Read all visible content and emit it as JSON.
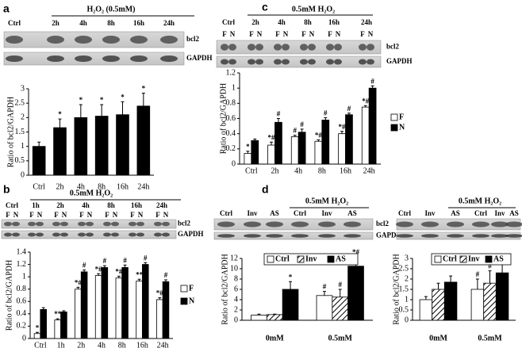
{
  "chart_data": [
    {
      "type": "bar",
      "panel_label": "a",
      "treatment_label": "H₂O₂ (0.5mM)",
      "lane_labels": [
        "Ctrl",
        "2h",
        "4h",
        "8h",
        "16h",
        "24h"
      ],
      "row_labels": [
        "bcl2",
        "GAPDH"
      ],
      "y_label": "Ratio of bcl2/GAPDH",
      "categories": [
        "Ctrl",
        "2h",
        "4h",
        "8h",
        "16h",
        "24h"
      ],
      "values": [
        1.0,
        1.65,
        2.0,
        2.05,
        2.1,
        2.4
      ],
      "errors": [
        0.15,
        0.3,
        0.45,
        0.4,
        0.45,
        0.45
      ],
      "annotations": [
        null,
        "*",
        "*",
        "*",
        "*",
        "*"
      ],
      "color": "#000000",
      "ylim": [
        0,
        3
      ],
      "yticks": [
        0,
        0.5,
        1,
        1.5,
        2,
        2.5,
        3
      ]
    },
    {
      "type": "bar",
      "panel_label": "b",
      "treatment_label": "0.5mM H₂O₂",
      "lane_labels": [
        "Ctrl",
        "1h",
        "2h",
        "4h",
        "8h",
        "16h",
        "24h"
      ],
      "lane_sublabels": [
        "F",
        "N"
      ],
      "row_labels": [
        "bcl2",
        "GAPDH"
      ],
      "y_label": "Ratio of bcl2/GAPDH",
      "categories": [
        "Ctrl",
        "1h",
        "2h",
        "4h",
        "8h",
        "16h",
        "24h"
      ],
      "series": [
        {
          "name": "F",
          "color": "#ffffff",
          "values": [
            0.08,
            0.3,
            0.8,
            1.02,
            0.98,
            0.93,
            0.63
          ],
          "errors": [
            0.02,
            0.02,
            0.03,
            0.03,
            0.03,
            0.03,
            0.03
          ],
          "annotations": [
            "*",
            "**",
            "*#",
            "*#",
            "*#",
            "**",
            "*#"
          ]
        },
        {
          "name": "N",
          "color": "#000000",
          "values": [
            0.47,
            0.43,
            1.08,
            1.15,
            1.15,
            1.2,
            0.92
          ],
          "errors": [
            0.03,
            0.02,
            0.03,
            0.03,
            0.04,
            0.03,
            0.03
          ],
          "annotations": [
            null,
            null,
            "#",
            "#",
            "#",
            "#",
            "#"
          ]
        }
      ],
      "ylim": [
        0,
        1.4
      ],
      "yticks": [
        0,
        0.2,
        0.4,
        0.6,
        0.8,
        1,
        1.2,
        1.4
      ]
    },
    {
      "type": "bar",
      "panel_label": "c",
      "treatment_label": "0.5mM H₂O₂",
      "lane_labels": [
        "Ctrl",
        "2h",
        "4h",
        "8h",
        "16h",
        "24h"
      ],
      "lane_sublabels": [
        "F",
        "N"
      ],
      "row_labels": [
        "bcl2",
        "GAPDH"
      ],
      "y_label": "Ratio of bcl2/GAPDH",
      "categories": [
        "Ctrl",
        "2h",
        "4h",
        "8h",
        "16h",
        "24h"
      ],
      "series": [
        {
          "name": "F",
          "color": "#ffffff",
          "values": [
            0.14,
            0.25,
            0.36,
            0.3,
            0.4,
            0.75
          ],
          "errors": [
            0.03,
            0.04,
            0.02,
            0.02,
            0.03,
            0.02
          ],
          "annotations": [
            "*",
            "*#",
            "#",
            "*#",
            "*#",
            "*#"
          ]
        },
        {
          "name": "N",
          "color": "#000000",
          "values": [
            0.31,
            0.55,
            0.42,
            0.58,
            0.65,
            1.0
          ],
          "errors": [
            0.02,
            0.05,
            0.04,
            0.03,
            0.02,
            0.03
          ],
          "annotations": [
            null,
            "#",
            "#",
            "#",
            "#",
            "#"
          ]
        }
      ],
      "ylim": [
        0,
        1.2
      ],
      "yticks": [
        0,
        0.2,
        0.4,
        0.6,
        0.8,
        1,
        1.2
      ]
    },
    {
      "type": "bar",
      "panel_label": "d",
      "treatment_label": "0.5mM H₂O₂",
      "lane_labels": [
        "Ctrl",
        "Inv",
        "AS",
        "Ctrl",
        "Inv",
        "AS"
      ],
      "row_labels": [
        "bcl2",
        "GAPDH"
      ],
      "y_label": "Ratio of bcl2/GAPDH",
      "categories": [
        "0mM",
        "0.5mM"
      ],
      "series": [
        {
          "name": "Ctrl",
          "color": "#ffffff",
          "values": [
            1.0,
            4.8
          ],
          "errors": [
            0.2,
            0.8
          ],
          "annotations": [
            null,
            "#"
          ]
        },
        {
          "name": "Inv",
          "color": "#ffffff",
          "hatch": true,
          "values": [
            1.1,
            4.5
          ],
          "errors": [
            0.1,
            1.5
          ],
          "annotations": [
            null,
            "#"
          ]
        },
        {
          "name": "AS",
          "color": "#000000",
          "values": [
            6.0,
            10.5
          ],
          "errors": [
            1.5,
            1.8
          ],
          "annotations": [
            "*",
            "*#"
          ]
        }
      ],
      "ylim": [
        0,
        12
      ],
      "yticks": [
        0,
        2,
        4,
        6,
        8,
        10,
        12
      ]
    },
    {
      "type": "bar",
      "treatment_label": "0.5mM H₂O₂",
      "lane_labels": [
        "Ctrl",
        "Inv",
        "AS",
        "Ctrl",
        "Inv",
        "AS"
      ],
      "y_label": "Ratio of bcl2/GAPDH",
      "categories": [
        "0mM",
        "0.5mM"
      ],
      "series": [
        {
          "name": "Ctrl",
          "color": "#ffffff",
          "values": [
            1.0,
            1.5
          ],
          "errors": [
            0.15,
            0.5
          ],
          "annotations": [
            null,
            "#"
          ]
        },
        {
          "name": "Inv",
          "color": "#ffffff",
          "hatch": true,
          "values": [
            1.5,
            1.8
          ],
          "errors": [
            0.3,
            0.6
          ],
          "annotations": [
            null,
            "#"
          ]
        },
        {
          "name": "AS",
          "color": "#000000",
          "values": [
            1.85,
            2.3
          ],
          "errors": [
            0.3,
            0.55
          ],
          "annotations": [
            null,
            "*#"
          ]
        }
      ],
      "ylim": [
        0,
        3
      ],
      "yticks": [
        0,
        0.5,
        1,
        1.5,
        2,
        2.5,
        3
      ]
    }
  ]
}
